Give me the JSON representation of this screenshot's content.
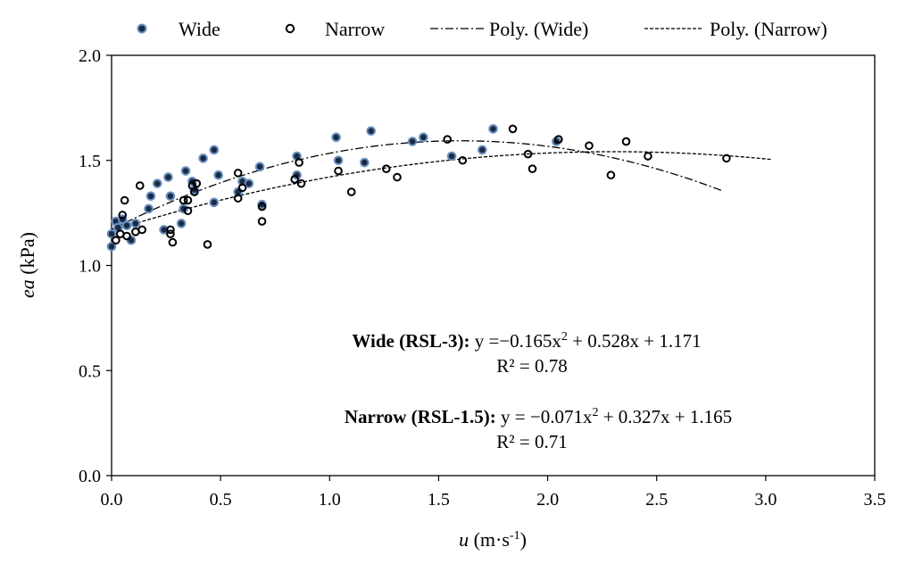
{
  "chart_data": {
    "type": "scatter",
    "xlabel": {
      "var": "u",
      "unit_pre": " (m·s",
      "unit_sup": "-1",
      "unit_post": ")"
    },
    "ylabel": {
      "var": "ea",
      "unit": " (kPa)"
    },
    "xlim": [
      0,
      3.5
    ],
    "ylim": [
      0,
      2.0
    ],
    "xticks": [
      "0.0",
      "0.5",
      "1.0",
      "1.5",
      "2.0",
      "2.5",
      "3.0",
      "3.5"
    ],
    "yticks": [
      "0.0",
      "0.5",
      "1.0",
      "1.5",
      "2.0"
    ],
    "legend": {
      "position": "top",
      "items": [
        "Wide",
        "Narrow",
        "Poly. (Wide)",
        "Poly. (Narrow)"
      ]
    },
    "series": [
      {
        "name": "Wide",
        "marker": "filled-circle",
        "color": "#4f6f9e",
        "points": [
          [
            0.0,
            1.09
          ],
          [
            0.0,
            1.15
          ],
          [
            0.02,
            1.21
          ],
          [
            0.03,
            1.18
          ],
          [
            0.05,
            1.22
          ],
          [
            0.07,
            1.19
          ],
          [
            0.09,
            1.12
          ],
          [
            0.11,
            1.2
          ],
          [
            0.17,
            1.27
          ],
          [
            0.18,
            1.33
          ],
          [
            0.21,
            1.39
          ],
          [
            0.24,
            1.17
          ],
          [
            0.26,
            1.42
          ],
          [
            0.27,
            1.33
          ],
          [
            0.32,
            1.2
          ],
          [
            0.33,
            1.27
          ],
          [
            0.34,
            1.45
          ],
          [
            0.37,
            1.4
          ],
          [
            0.38,
            1.36
          ],
          [
            0.42,
            1.51
          ],
          [
            0.47,
            1.55
          ],
          [
            0.47,
            1.3
          ],
          [
            0.49,
            1.43
          ],
          [
            0.58,
            1.35
          ],
          [
            0.6,
            1.4
          ],
          [
            0.63,
            1.39
          ],
          [
            0.68,
            1.47
          ],
          [
            0.69,
            1.29
          ],
          [
            0.85,
            1.43
          ],
          [
            0.85,
            1.52
          ],
          [
            1.03,
            1.61
          ],
          [
            1.04,
            1.5
          ],
          [
            1.16,
            1.49
          ],
          [
            1.19,
            1.64
          ],
          [
            1.38,
            1.59
          ],
          [
            1.43,
            1.61
          ],
          [
            1.56,
            1.52
          ],
          [
            1.7,
            1.55
          ],
          [
            1.75,
            1.65
          ],
          [
            2.04,
            1.59
          ]
        ]
      },
      {
        "name": "Narrow",
        "marker": "open-circle",
        "color": "#000000",
        "points": [
          [
            0.02,
            1.12
          ],
          [
            0.04,
            1.15
          ],
          [
            0.05,
            1.24
          ],
          [
            0.06,
            1.31
          ],
          [
            0.07,
            1.14
          ],
          [
            0.11,
            1.16
          ],
          [
            0.13,
            1.38
          ],
          [
            0.14,
            1.17
          ],
          [
            0.27,
            1.15
          ],
          [
            0.27,
            1.17
          ],
          [
            0.28,
            1.11
          ],
          [
            0.33,
            1.31
          ],
          [
            0.35,
            1.31
          ],
          [
            0.35,
            1.26
          ],
          [
            0.37,
            1.38
          ],
          [
            0.38,
            1.35
          ],
          [
            0.39,
            1.39
          ],
          [
            0.44,
            1.1
          ],
          [
            0.58,
            1.44
          ],
          [
            0.58,
            1.32
          ],
          [
            0.6,
            1.37
          ],
          [
            0.69,
            1.28
          ],
          [
            0.69,
            1.21
          ],
          [
            0.84,
            1.41
          ],
          [
            0.86,
            1.49
          ],
          [
            0.87,
            1.39
          ],
          [
            1.04,
            1.45
          ],
          [
            1.1,
            1.35
          ],
          [
            1.26,
            1.46
          ],
          [
            1.31,
            1.42
          ],
          [
            1.54,
            1.6
          ],
          [
            1.61,
            1.5
          ],
          [
            1.84,
            1.65
          ],
          [
            1.91,
            1.53
          ],
          [
            1.93,
            1.46
          ],
          [
            2.05,
            1.6
          ],
          [
            2.19,
            1.57
          ],
          [
            2.29,
            1.43
          ],
          [
            2.36,
            1.59
          ],
          [
            2.46,
            1.52
          ],
          [
            2.82,
            1.51
          ]
        ]
      }
    ],
    "trendlines": [
      {
        "name": "Poly. (Wide)",
        "style": "dash-dot",
        "coef": [
          -0.165,
          0.528,
          1.171
        ],
        "x_range": [
          0,
          2.8
        ]
      },
      {
        "name": "Poly. (Narrow)",
        "style": "dashed",
        "coef": [
          -0.071,
          0.327,
          1.165
        ],
        "x_range": [
          0,
          3.03
        ]
      }
    ],
    "annotations": [
      {
        "label": "Wide (RSL-3):",
        "eq_pre": " y =−0.165x",
        "eq_sup": "2",
        "eq_post": " + 0.528x + 1.171",
        "r2": "R² = 0.78"
      },
      {
        "label": "Narrow (RSL-1.5):",
        "eq_pre": " y = −0.071x",
        "eq_sup": "2",
        "eq_post": " + 0.327x + 1.165",
        "r2": "R² = 0.71"
      }
    ]
  }
}
